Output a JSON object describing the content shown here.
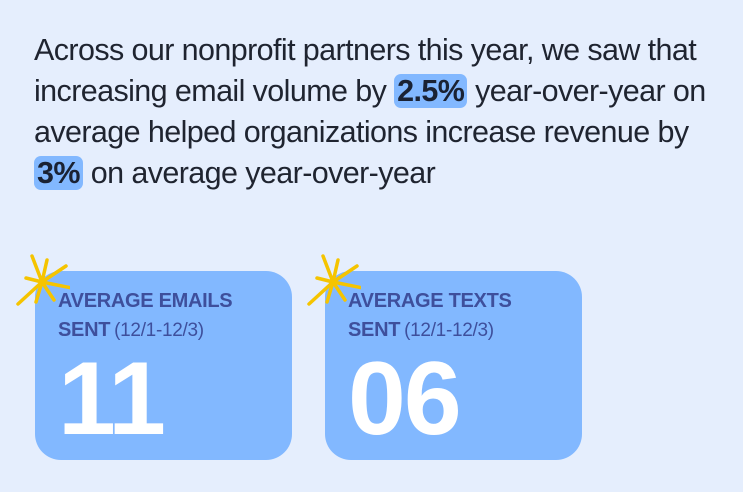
{
  "intro": {
    "part1": "Across our nonprofit partners this year, we saw that increasing email volume by ",
    "highlight1": "2.5%",
    "part2": " year-over-year on average helped organizations increase revenue by ",
    "highlight2": "3%",
    "part3": " on average year-over-year"
  },
  "cards": [
    {
      "label": "AVERAGE EMAILS SENT",
      "dates": "(12/1-12/3)",
      "value": "11"
    },
    {
      "label": "AVERAGE TEXTS SENT",
      "dates": "(12/1-12/3)",
      "value": "06"
    }
  ],
  "colors": {
    "background": "#e5eefd",
    "card": "#82b8ff",
    "label": "#3e4f9c",
    "sparkle": "#f5c400"
  },
  "icons": [
    "sparkle-icon"
  ]
}
